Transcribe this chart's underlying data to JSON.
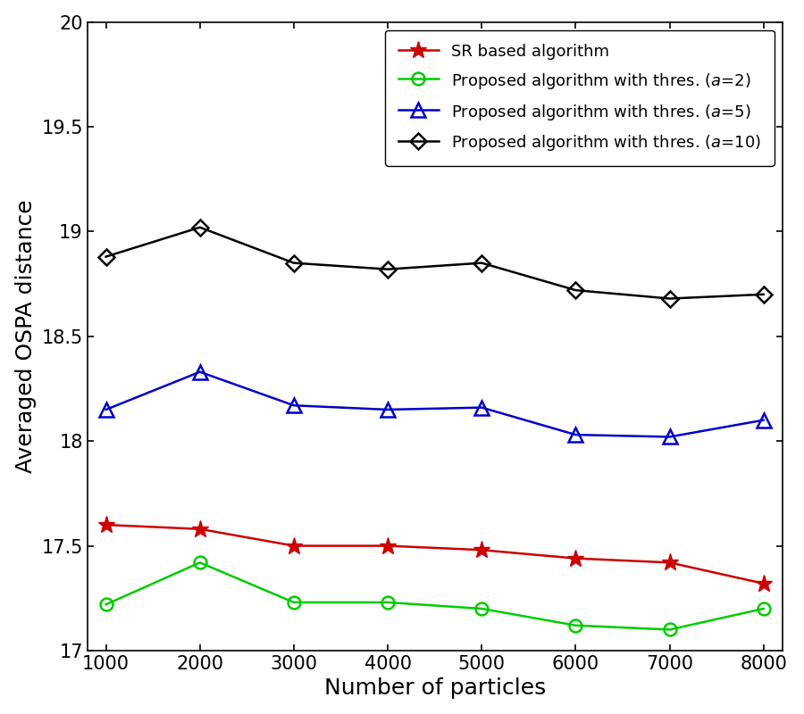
{
  "x": [
    1000,
    2000,
    3000,
    4000,
    5000,
    6000,
    7000,
    8000
  ],
  "sr_based": [
    17.6,
    17.58,
    17.5,
    17.5,
    17.48,
    17.44,
    17.42,
    17.32
  ],
  "proposed_a2": [
    17.22,
    17.42,
    17.23,
    17.23,
    17.2,
    17.12,
    17.1,
    17.2
  ],
  "proposed_a5": [
    18.15,
    18.33,
    18.17,
    18.15,
    18.16,
    18.03,
    18.02,
    18.1
  ],
  "proposed_a10": [
    18.88,
    19.02,
    18.85,
    18.82,
    18.85,
    18.72,
    18.68,
    18.7
  ],
  "sr_color": "#cc0000",
  "a2_color": "#00cc00",
  "a5_color": "#0000cc",
  "a10_color": "#000000",
  "xlabel": "Number of particles",
  "ylabel": "Averaged OSPA distance",
  "ylim": [
    17.0,
    20.0
  ],
  "xlim": [
    800,
    8200
  ],
  "ytick_values": [
    17.0,
    17.5,
    18.0,
    18.5,
    19.0,
    19.5,
    20.0
  ],
  "ytick_labels": [
    "17",
    "17.5",
    "18",
    "18.5",
    "19",
    "19.5",
    "20"
  ],
  "legend_sr": "SR based algorithm",
  "legend_a2": "Proposed algorithm with thres. ($a$=2)",
  "legend_a5": "Proposed algorithm with thres. ($a$=5)",
  "legend_a10": "Proposed algorithm with thres. ($a$=10)",
  "linewidth": 1.8,
  "markersize_star": 14,
  "markersize_circle": 10,
  "markersize_tri": 11,
  "markersize_diamond": 9,
  "fontsize_label": 18,
  "fontsize_tick": 15,
  "fontsize_legend": 13
}
